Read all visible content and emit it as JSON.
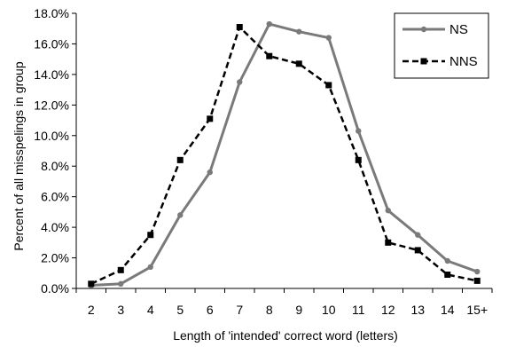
{
  "chart_data": {
    "type": "line",
    "title": "",
    "xlabel": "Length of  'intended' correct word (letters)",
    "ylabel": "Percent of all misspelings  in group",
    "categories": [
      "2",
      "3",
      "4",
      "5",
      "6",
      "7",
      "8",
      "9",
      "10",
      "11",
      "12",
      "13",
      "14",
      "15+"
    ],
    "ylim": [
      0,
      18
    ],
    "yticks": [
      "0.0%",
      "2.0%",
      "4.0%",
      "6.0%",
      "8.0%",
      "10.0%",
      "12.0%",
      "14.0%",
      "16.0%",
      "18.0%"
    ],
    "grid": false,
    "legend_position": "top-right",
    "series": [
      {
        "name": "NS",
        "color": "#7a7a7a",
        "line_style": "solid",
        "marker": "circle",
        "values": [
          0.2,
          0.3,
          1.4,
          4.8,
          7.6,
          13.5,
          17.3,
          16.8,
          16.4,
          10.3,
          5.1,
          3.5,
          1.8,
          1.1
        ]
      },
      {
        "name": "NNS",
        "color": "#000000",
        "line_style": "dashed",
        "marker": "square",
        "values": [
          0.3,
          1.2,
          3.5,
          8.4,
          11.1,
          17.1,
          15.2,
          14.7,
          13.3,
          8.4,
          3.0,
          2.5,
          0.9,
          0.5
        ]
      }
    ]
  }
}
